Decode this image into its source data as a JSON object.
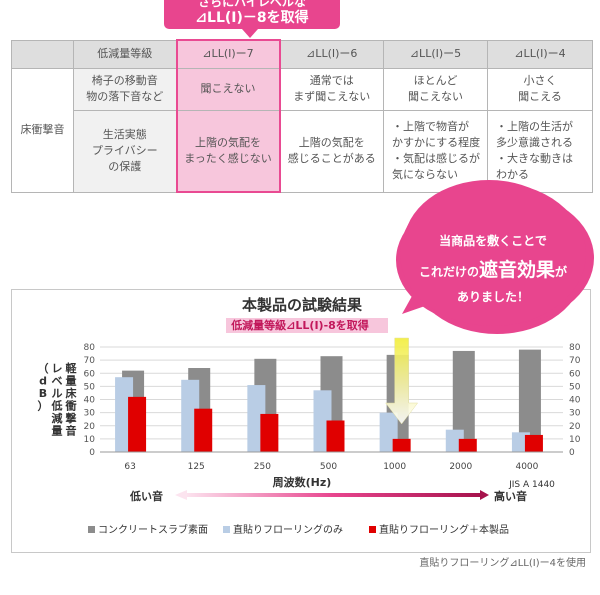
{
  "banner": {
    "line1": "さらにハイレベルな",
    "line2": "⊿LL(Ⅰ)－8を取得"
  },
  "table": {
    "header": [
      "",
      "低減量等級",
      "⊿LL(Ⅰ)ー7",
      "⊿LL(Ⅰ)ー6",
      "⊿LL(Ⅰ)ー5",
      "⊿LL(Ⅰ)ー4"
    ],
    "category": "床衝撃音",
    "rows": [
      {
        "label": "椅子の移動音\n物の落下音など",
        "cells": [
          "聞こえない",
          "通常では\nまず聞こえない",
          "ほとんど\n聞こえない",
          "小さく\n聞こえる"
        ]
      },
      {
        "label": "生活実態\nプライバシー\nの保護",
        "cells": [
          "上階の気配を\nまったく感じない",
          "上階の気配を\n感じることがある",
          "・上階で物音が\nかすかにする程度\n・気配は感じるが\n気にならない",
          "・上階の生活が\n多少意識される\n・大きな動きは\nわかる"
        ]
      }
    ]
  },
  "bubble": {
    "line1": "当商品を敷くことで",
    "pre": "これだけの",
    "big": "遮音効果",
    "post": "が",
    "line3": "ありました！"
  },
  "chart_data": {
    "type": "bar",
    "title": "本製品の試験結果",
    "subtitle": "低減量等級⊿LL(Ⅰ)-8を取得",
    "ylabel": "軽量床衝撃音レベル低減量（dB）",
    "ylabel_cols": [
      "軽量床衝撃音",
      "レベル低減量",
      "（dB）"
    ],
    "xlabel": "周波数(Hz)",
    "ylim": [
      0,
      80
    ],
    "yticks": [
      0,
      10,
      20,
      30,
      40,
      50,
      60,
      70,
      80
    ],
    "categories": [
      "63",
      "125",
      "250",
      "500",
      "1000",
      "2000",
      "4000"
    ],
    "series": [
      {
        "name": "コンクリートスラブ素面",
        "color": "#8c8c8c",
        "values": [
          62,
          64,
          71,
          73,
          74,
          77,
          78
        ]
      },
      {
        "name": "直貼りフローリングのみ",
        "color": "#b9cde5",
        "values": [
          57,
          55,
          51,
          47,
          30,
          17,
          15
        ]
      },
      {
        "name": "直貼りフローリング＋本製品",
        "color": "#e00000",
        "values": [
          42,
          33,
          29,
          24,
          10,
          10,
          13
        ]
      }
    ],
    "annotation": "JIS A 1440",
    "low_label": "低い音",
    "high_label": "高い音"
  },
  "footnote": "直貼りフローリング⊿LL(Ⅰ)ー4を使用"
}
